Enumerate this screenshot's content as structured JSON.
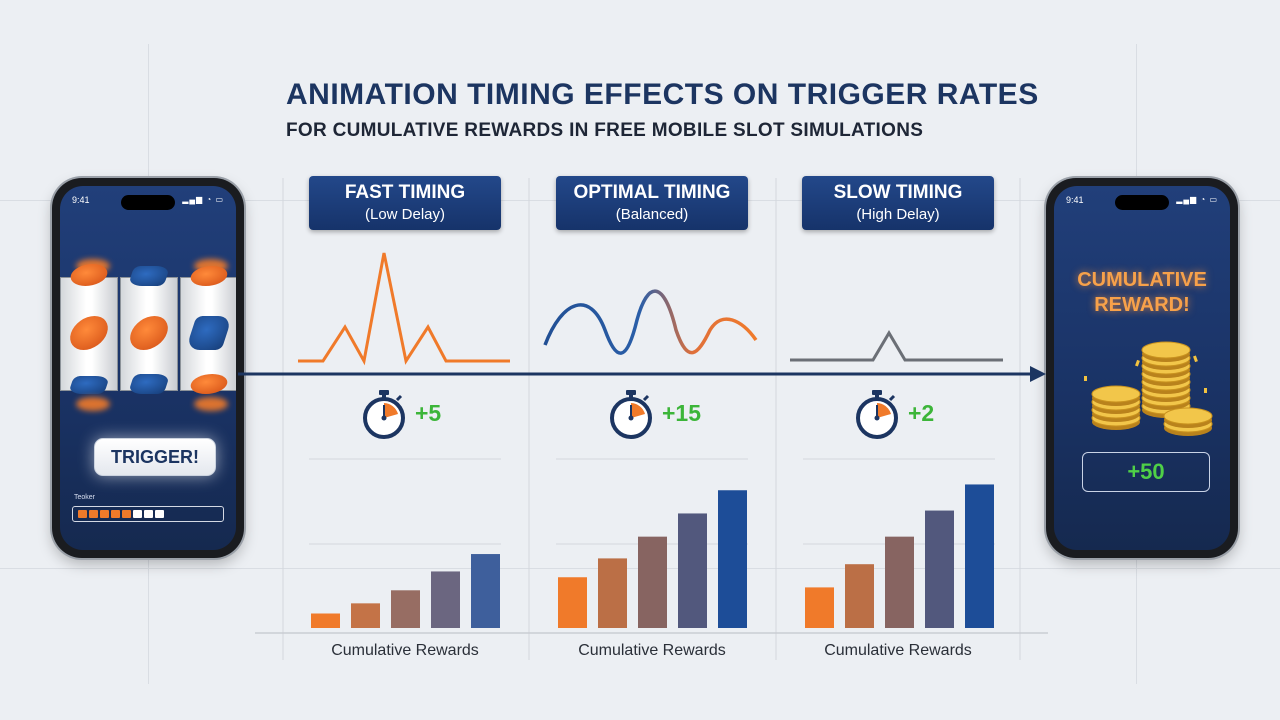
{
  "title": "ANIMATION TIMING EFFECTS ON TRIGGER RATES",
  "subtitle": "FOR CUMULATIVE REWARDS IN FREE MOBILE SLOT SIMULATIONS",
  "left_phone": {
    "time": "9:41",
    "trigger_label": "TRIGGER!",
    "progress_label": "Teoker",
    "progress_filled": 5,
    "progress_total": 8
  },
  "right_phone": {
    "time": "9:41",
    "reward_title": "CUMULATIVE REWARD!",
    "reward_value": "+50"
  },
  "columns": [
    {
      "title": "FAST TIMING",
      "subtitle": "(Low Delay)",
      "value": "+5",
      "caption": "Cumulative Rewards",
      "signal": "sharp-spikes",
      "bars": [
        1,
        1.7,
        2.6,
        3.9,
        5.1
      ]
    },
    {
      "title": "OPTIMAL TIMING",
      "subtitle": "(Balanced)",
      "value": "+15",
      "caption": "Cumulative Rewards",
      "signal": "smooth-wave",
      "bars": [
        3.5,
        4.8,
        6.3,
        7.9,
        9.5
      ]
    },
    {
      "title": "SLOW TIMING",
      "subtitle": "(High Delay)",
      "value": "+2",
      "caption": "Cumulative Rewards",
      "signal": "single-bump",
      "bars": [
        2.8,
        4.4,
        6.3,
        8.1,
        9.9
      ]
    }
  ],
  "colors": {
    "navy": "#1c3561",
    "orange": "#f07a2a",
    "blue": "#2a5ea8",
    "green": "#3cb539",
    "gray_signal": "#6b6f76"
  }
}
